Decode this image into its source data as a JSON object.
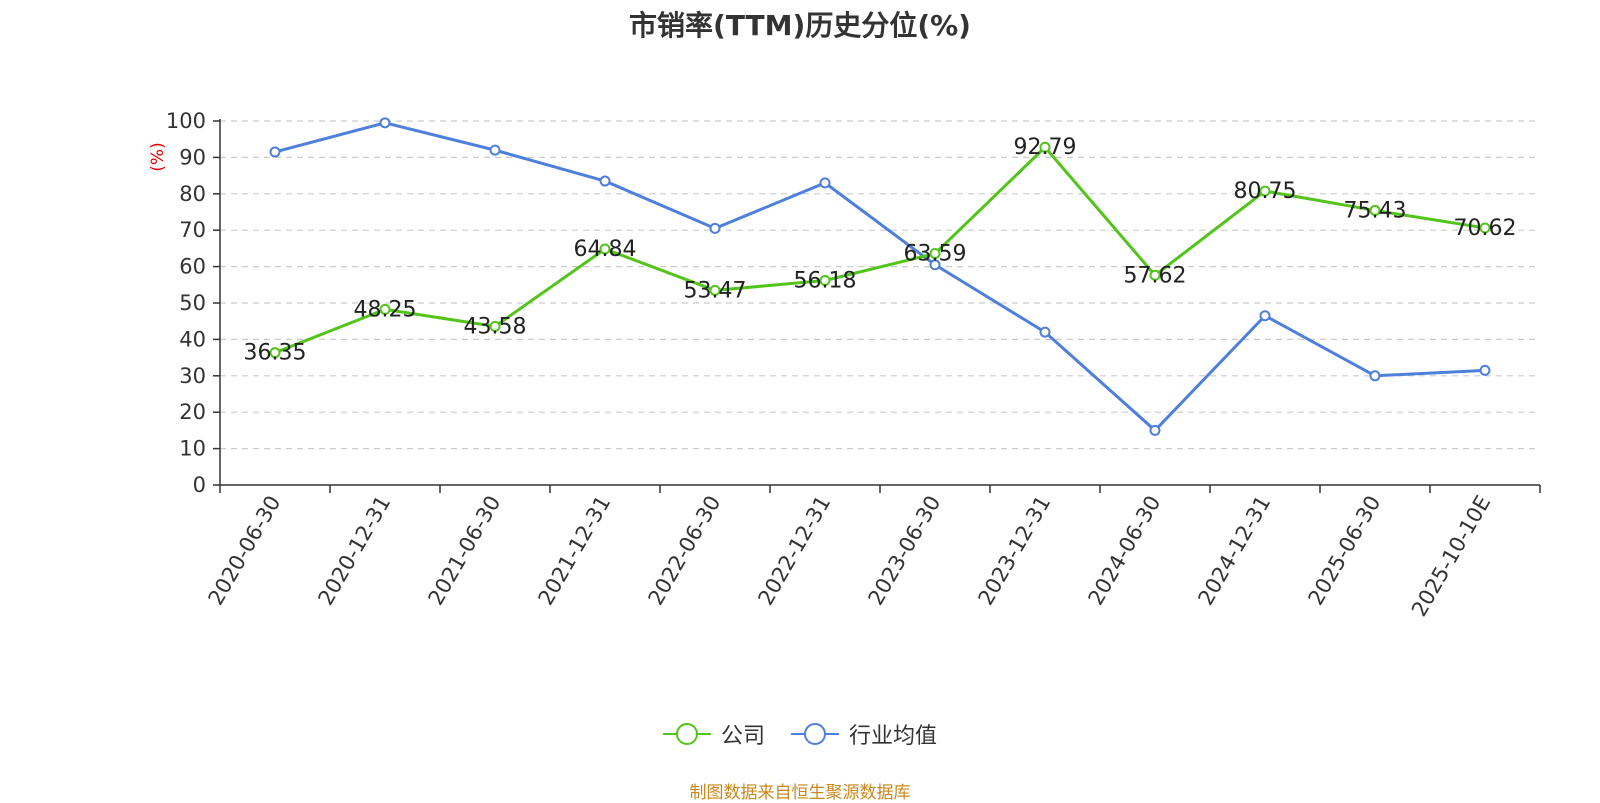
{
  "chart_data": {
    "type": "line",
    "title": "市销率(TTM)历史分位(%)",
    "ylabel": "(%)",
    "ylim": [
      0,
      100
    ],
    "yticks": [
      0,
      10,
      20,
      30,
      40,
      50,
      60,
      70,
      80,
      90,
      100
    ],
    "categories": [
      "2020-06-30",
      "2020-12-31",
      "2021-06-30",
      "2021-12-31",
      "2022-06-30",
      "2022-12-31",
      "2023-06-30",
      "2023-12-31",
      "2024-06-30",
      "2024-12-31",
      "2025-06-30",
      "2025-10-10E"
    ],
    "series": [
      {
        "name": "公司",
        "color": "#52c41a",
        "show_labels": true,
        "values": [
          36.35,
          48.25,
          43.58,
          64.84,
          53.47,
          56.18,
          63.59,
          92.79,
          57.62,
          80.75,
          75.43,
          70.62
        ]
      },
      {
        "name": "行业均值",
        "color": "#4e7fdc",
        "show_labels": false,
        "values": [
          91.5,
          99.5,
          92.0,
          83.5,
          70.5,
          83.0,
          60.5,
          42.0,
          15.0,
          46.5,
          30.0,
          31.5
        ]
      }
    ],
    "grid": true,
    "legend_position": "bottom-center",
    "source": "制图数据来自恒生聚源数据库"
  }
}
